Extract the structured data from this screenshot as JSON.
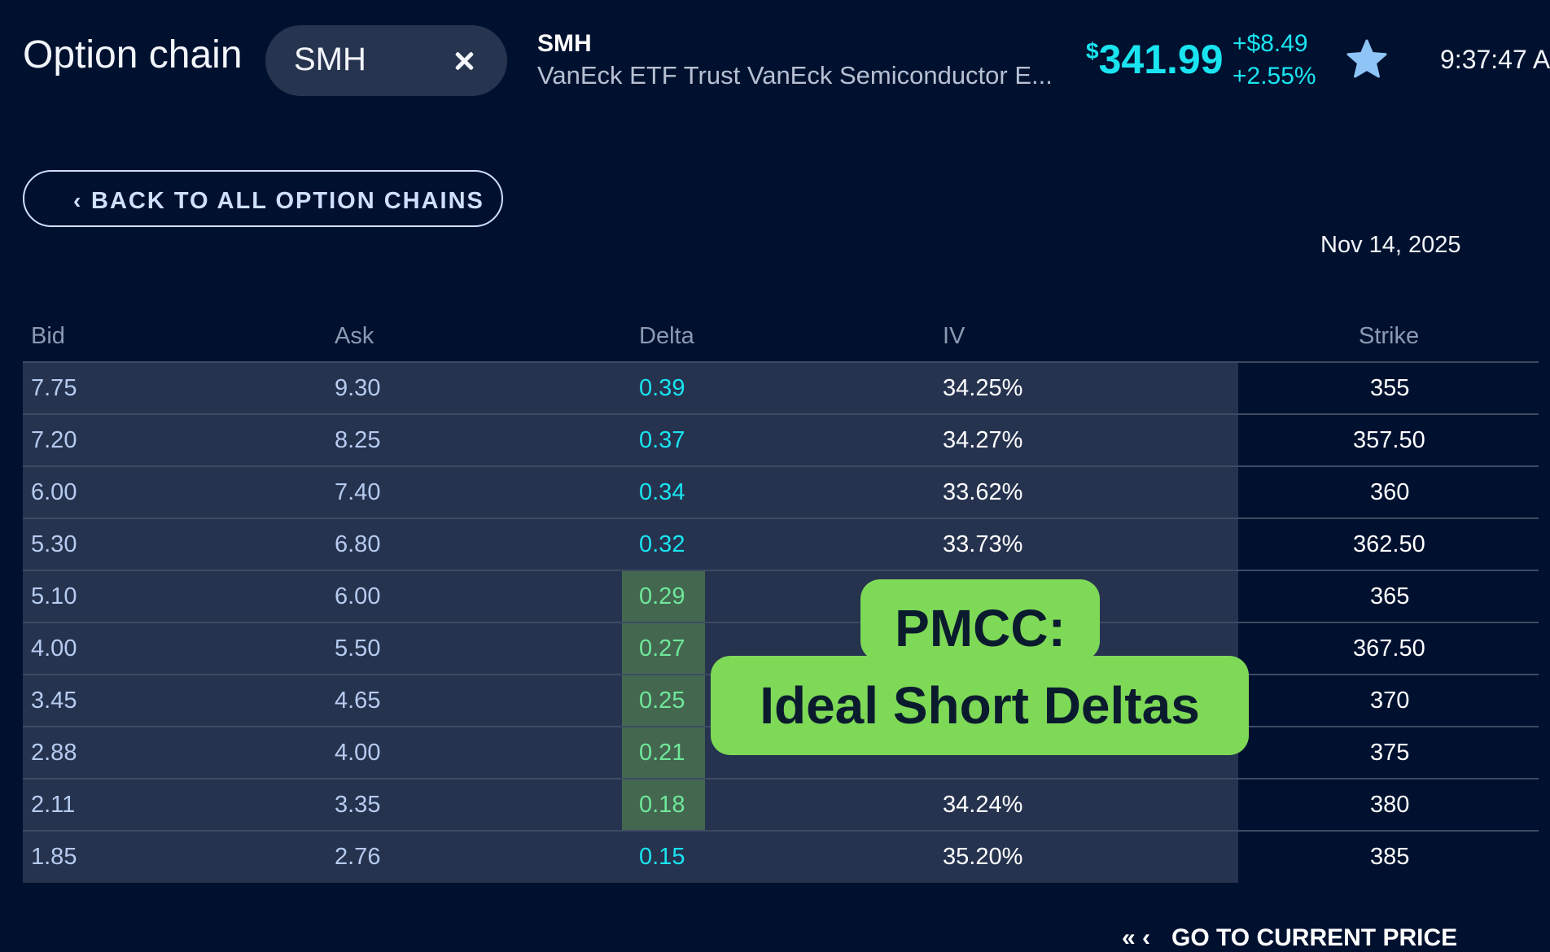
{
  "header": {
    "title": "Option chain",
    "search": {
      "value": "SMH"
    },
    "symbol": "SMH",
    "company_name": "VanEck ETF Trust VanEck Semiconductor E...",
    "price_currency": "$",
    "price": "341.99",
    "change_abs": "+$8.49",
    "change_pct": "+2.55%",
    "time": "9:37:47 A",
    "accent_color": "#19e4f0"
  },
  "back_button": {
    "chevron": "‹",
    "label": "BACK TO ALL OPTION CHAINS"
  },
  "expiry_date": "Nov 14, 2025",
  "table": {
    "columns": [
      "Bid",
      "Ask",
      "Delta",
      "IV",
      "Strike"
    ],
    "rows": [
      {
        "bid": "7.75",
        "ask": "9.30",
        "delta": "0.39",
        "iv": "34.25%",
        "strike": "355"
      },
      {
        "bid": "7.20",
        "ask": "8.25",
        "delta": "0.37",
        "iv": "34.27%",
        "strike": "357.50"
      },
      {
        "bid": "6.00",
        "ask": "7.40",
        "delta": "0.34",
        "iv": "33.62%",
        "strike": "360"
      },
      {
        "bid": "5.30",
        "ask": "6.80",
        "delta": "0.32",
        "iv": "33.73%",
        "strike": "362.50"
      },
      {
        "bid": "5.10",
        "ask": "6.00",
        "delta": "0.29",
        "iv": "",
        "strike": "365"
      },
      {
        "bid": "4.00",
        "ask": "5.50",
        "delta": "0.27",
        "iv": "",
        "strike": "367.50"
      },
      {
        "bid": "3.45",
        "ask": "4.65",
        "delta": "0.25",
        "iv": "",
        "strike": "370"
      },
      {
        "bid": "2.88",
        "ask": "4.00",
        "delta": "0.21",
        "iv": "",
        "strike": "375"
      },
      {
        "bid": "2.11",
        "ask": "3.35",
        "delta": "0.18",
        "iv": "34.24%",
        "strike": "380"
      },
      {
        "bid": "1.85",
        "ask": "2.76",
        "delta": "0.15",
        "iv": "35.20%",
        "strike": "385"
      }
    ],
    "highlight_color": "#44674f"
  },
  "callout": {
    "line1": "PMCC:",
    "line2": "Ideal Short Deltas",
    "color": "#7ed957"
  },
  "footer": {
    "arrows": "« ‹",
    "label": "GO TO CURRENT PRICE"
  }
}
